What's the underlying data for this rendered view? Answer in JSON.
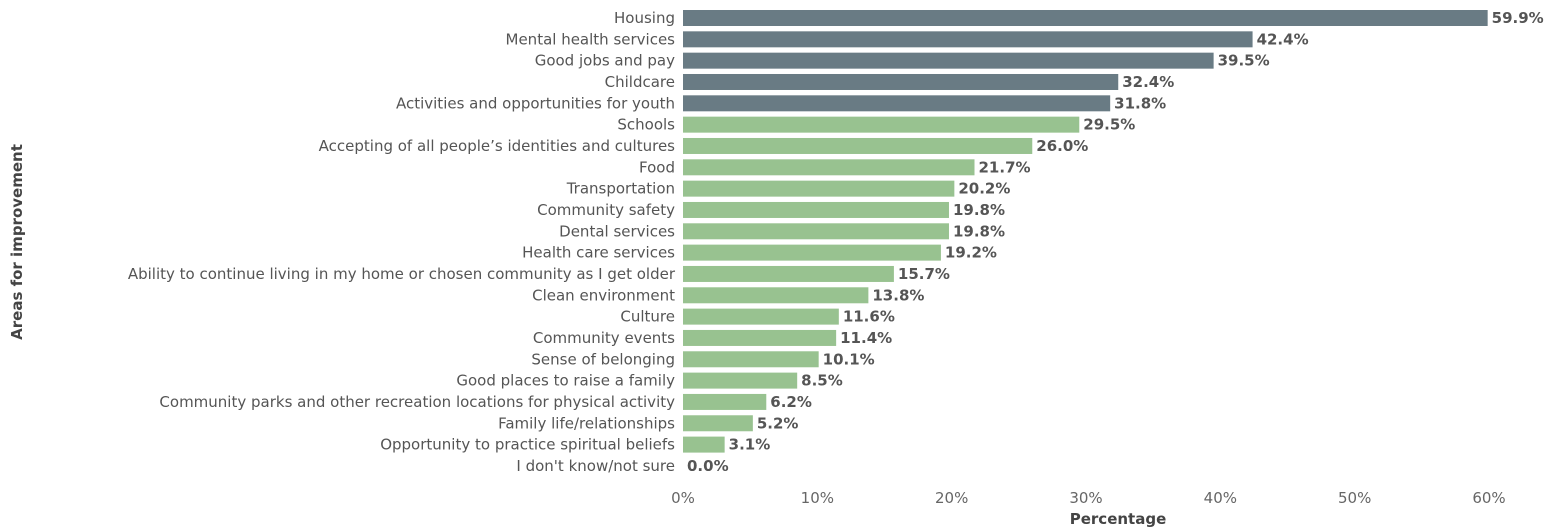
{
  "chart_data": {
    "type": "bar",
    "orientation": "horizontal",
    "xlabel": "Percentage",
    "ylabel": "Areas for improvement",
    "xlim": [
      0,
      60
    ],
    "xticks": [
      "0%",
      "10%",
      "20%",
      "30%",
      "40%",
      "50%",
      "60%"
    ],
    "xtick_values": [
      0,
      10,
      20,
      30,
      40,
      50,
      60
    ],
    "grid": false,
    "legend": "none",
    "highlight_color": "#697b84",
    "default_color": "#98c290",
    "categories": [
      "Housing",
      "Mental health services",
      "Good jobs and pay",
      "Childcare",
      "Activities and opportunities for youth",
      "Schools",
      "Accepting of all people’s identities and cultures",
      "Food",
      "Transportation",
      "Community safety",
      "Dental services",
      "Health care services",
      "Ability to continue living in my home or chosen community as I get older",
      "Clean environment",
      "Culture",
      "Community events",
      "Sense of belonging",
      "Good places to raise a family",
      "Community parks and other recreation locations for physical activity",
      "Family life/relationships",
      "Opportunity to practice spiritual beliefs",
      "I don't know/not sure"
    ],
    "values": [
      59.9,
      42.4,
      39.5,
      32.4,
      31.8,
      29.5,
      26.0,
      21.7,
      20.2,
      19.8,
      19.8,
      19.2,
      15.7,
      13.8,
      11.6,
      11.4,
      10.1,
      8.5,
      6.2,
      5.2,
      3.1,
      0.0
    ],
    "value_labels": [
      "59.9%",
      "42.4%",
      "39.5%",
      "32.4%",
      "31.8%",
      "29.5%",
      "26.0%",
      "21.7%",
      "20.2%",
      "19.8%",
      "19.8%",
      "19.2%",
      "15.7%",
      "13.8%",
      "11.6%",
      "11.4%",
      "10.1%",
      "8.5%",
      "6.2%",
      "5.2%",
      "3.1%",
      "0.0%"
    ],
    "highlight_count": 5
  }
}
